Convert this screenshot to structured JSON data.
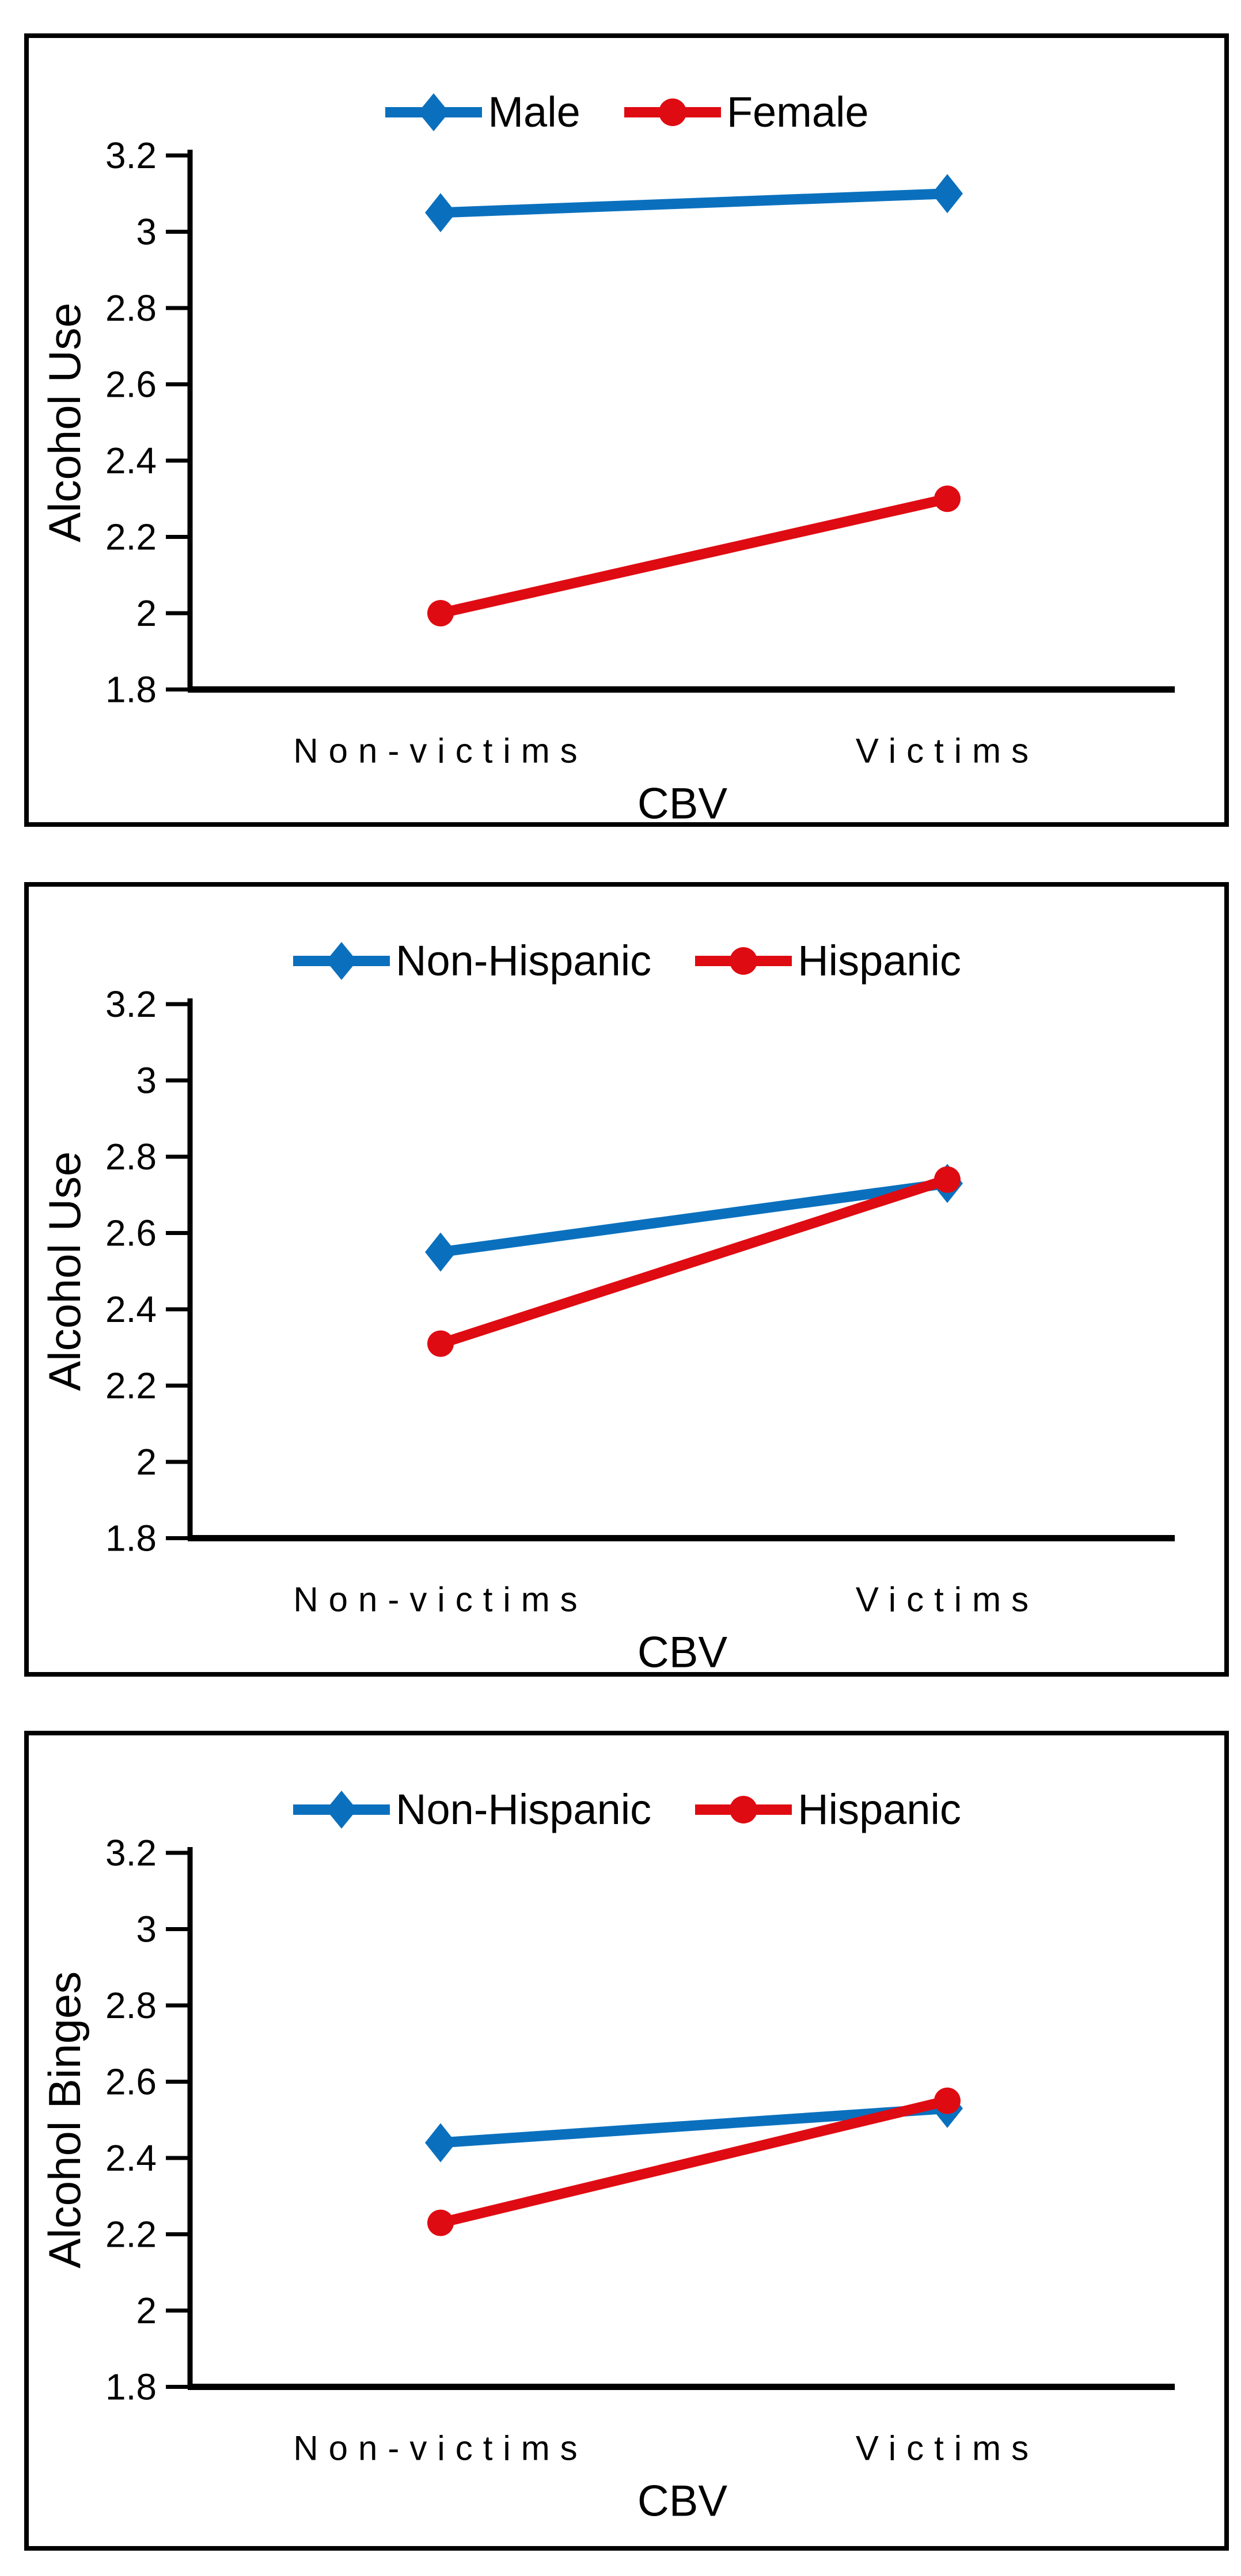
{
  "figure": {
    "background": "#ffffff",
    "panel_border_color": "#000000",
    "axis_color": "#000000",
    "text_color": "#000000"
  },
  "colors": {
    "series_blue": "#0A70BE",
    "series_red": "#DF0B12"
  },
  "chart_data": [
    {
      "type": "line",
      "title": "",
      "xlabel": "CBV",
      "ylabel": "Alcohol Use",
      "categories": [
        "Non-victims",
        "Victims"
      ],
      "ylim": [
        1.8,
        3.2
      ],
      "ytick_step": 0.2,
      "ytick_labels": [
        "3.2",
        "3",
        "2.8",
        "2.6",
        "2.4",
        "2.2",
        "2",
        "1.8"
      ],
      "ytick_values": [
        3.2,
        3.0,
        2.8,
        2.6,
        2.4,
        2.2,
        2.0,
        1.8
      ],
      "grid": false,
      "legend_position": "top-center",
      "series": [
        {
          "name": "Male",
          "marker": "diamond",
          "color": "#0A70BE",
          "values": [
            3.05,
            3.1
          ]
        },
        {
          "name": "Female",
          "marker": "circle",
          "color": "#DF0B12",
          "values": [
            2.0,
            2.3
          ]
        }
      ]
    },
    {
      "type": "line",
      "title": "",
      "xlabel": "CBV",
      "ylabel": "Alcohol Use",
      "categories": [
        "Non-victims",
        "Victims"
      ],
      "ylim": [
        1.8,
        3.2
      ],
      "ytick_step": 0.2,
      "ytick_labels": [
        "3.2",
        "3",
        "2.8",
        "2.6",
        "2.4",
        "2.2",
        "2",
        "1.8"
      ],
      "ytick_values": [
        3.2,
        3.0,
        2.8,
        2.6,
        2.4,
        2.2,
        2.0,
        1.8
      ],
      "grid": false,
      "legend_position": "top-center",
      "series": [
        {
          "name": "Non-Hispanic",
          "marker": "diamond",
          "color": "#0A70BE",
          "values": [
            2.55,
            2.73
          ]
        },
        {
          "name": "Hispanic",
          "marker": "circle",
          "color": "#DF0B12",
          "values": [
            2.31,
            2.74
          ]
        }
      ]
    },
    {
      "type": "line",
      "title": "",
      "xlabel": "CBV",
      "ylabel": "Alcohol Binges",
      "categories": [
        "Non-victims",
        "Victims"
      ],
      "ylim": [
        1.8,
        3.2
      ],
      "ytick_step": 0.2,
      "ytick_labels": [
        "3.2",
        "3",
        "2.8",
        "2.6",
        "2.4",
        "2.2",
        "2",
        "1.8"
      ],
      "ytick_values": [
        3.2,
        3.0,
        2.8,
        2.6,
        2.4,
        2.2,
        2.0,
        1.8
      ],
      "grid": false,
      "legend_position": "top-center",
      "series": [
        {
          "name": "Non-Hispanic",
          "marker": "diamond",
          "color": "#0A70BE",
          "values": [
            2.44,
            2.53
          ]
        },
        {
          "name": "Hispanic",
          "marker": "circle",
          "color": "#DF0B12",
          "values": [
            2.23,
            2.55
          ]
        }
      ]
    }
  ]
}
